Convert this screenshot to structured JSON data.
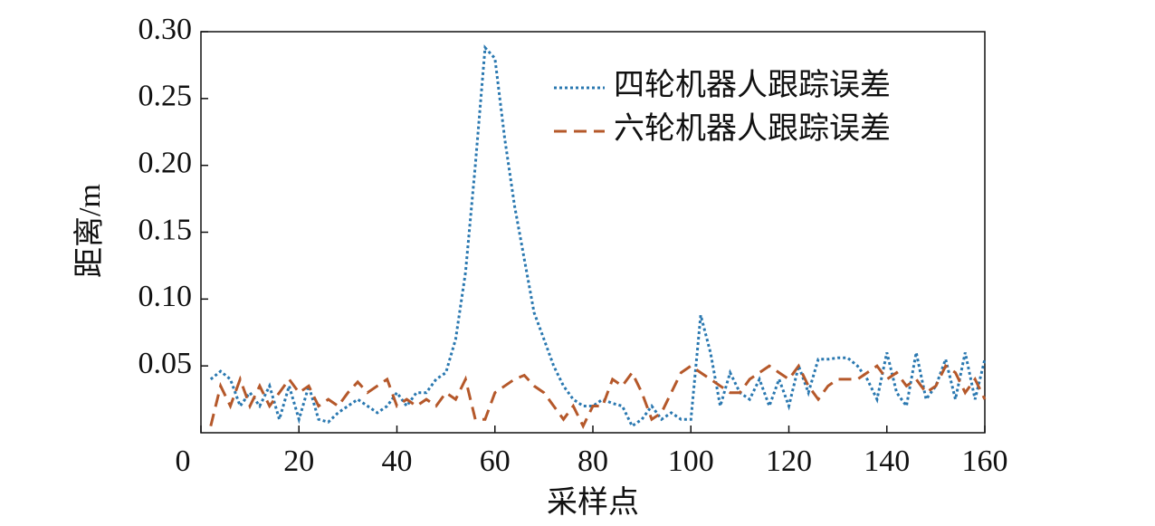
{
  "chart_data": {
    "type": "line",
    "x_label": "采样点",
    "y_label": "距离/m",
    "xlim": [
      0,
      160
    ],
    "ylim": [
      0,
      0.3
    ],
    "xticks": [
      0,
      20,
      40,
      60,
      80,
      100,
      120,
      140,
      160
    ],
    "yticks": [
      0.05,
      {
        "value": 0.1,
        "label": "0.10"
      },
      0.15,
      {
        "value": 0.2,
        "label": "0.20"
      },
      0.25,
      {
        "value": 0.3,
        "label": "0.30"
      }
    ],
    "legend": "upper right",
    "x": [
      2,
      4,
      6,
      8,
      10,
      12,
      14,
      16,
      18,
      20,
      22,
      24,
      26,
      28,
      30,
      32,
      34,
      36,
      38,
      40,
      42,
      44,
      46,
      48,
      50,
      52,
      54,
      56,
      58,
      60,
      62,
      64,
      66,
      68,
      70,
      72,
      74,
      76,
      78,
      80,
      82,
      84,
      86,
      88,
      90,
      92,
      94,
      96,
      98,
      100,
      102,
      104,
      106,
      108,
      110,
      112,
      114,
      116,
      118,
      120,
      122,
      124,
      126,
      128,
      130,
      132,
      134,
      136,
      138,
      140,
      142,
      144,
      146,
      148,
      150,
      152,
      154,
      156,
      158,
      160
    ],
    "series": [
      {
        "name": "四轮机器人跟踪误差",
        "color": "#2a78b0",
        "style": "dotted",
        "values": [
          0.04,
          0.046,
          0.04,
          0.02,
          0.03,
          0.02,
          0.035,
          0.01,
          0.035,
          0.01,
          0.035,
          0.01,
          0.008,
          0.015,
          0.02,
          0.025,
          0.02,
          0.015,
          0.02,
          0.03,
          0.02,
          0.03,
          0.03,
          0.04,
          0.045,
          0.07,
          0.12,
          0.2,
          0.288,
          0.28,
          0.22,
          0.17,
          0.13,
          0.09,
          0.07,
          0.05,
          0.035,
          0.025,
          0.02,
          0.02,
          0.025,
          0.022,
          0.02,
          0.005,
          0.01,
          0.02,
          0.01,
          0.015,
          0.01,
          0.01,
          0.088,
          0.06,
          0.02,
          0.045,
          0.03,
          0.025,
          0.04,
          0.02,
          0.04,
          0.02,
          0.05,
          0.03,
          0.055,
          0.055,
          0.056,
          0.056,
          0.05,
          0.04,
          0.025,
          0.06,
          0.03,
          0.02,
          0.06,
          0.025,
          0.035,
          0.055,
          0.025,
          0.06,
          0.025,
          0.055
        ]
      },
      {
        "name": "六轮机器人跟踪误差",
        "color": "#b5582a",
        "style": "dashed",
        "values": [
          0.005,
          0.035,
          0.02,
          0.04,
          0.02,
          0.035,
          0.02,
          0.03,
          0.04,
          0.03,
          0.035,
          0.02,
          0.025,
          0.02,
          0.03,
          0.038,
          0.03,
          0.035,
          0.04,
          0.02,
          0.025,
          0.02,
          0.025,
          0.02,
          0.03,
          0.025,
          0.04,
          0.01,
          0.01,
          0.03,
          0.035,
          0.04,
          0.043,
          0.035,
          0.03,
          0.02,
          0.01,
          0.02,
          0.005,
          0.02,
          0.02,
          0.04,
          0.035,
          0.045,
          0.03,
          0.01,
          0.015,
          0.03,
          0.045,
          0.05,
          0.045,
          0.04,
          0.035,
          0.03,
          0.03,
          0.04,
          0.045,
          0.05,
          0.045,
          0.04,
          0.05,
          0.035,
          0.025,
          0.035,
          0.04,
          0.04,
          0.04,
          0.045,
          0.05,
          0.04,
          0.045,
          0.035,
          0.04,
          0.03,
          0.035,
          0.05,
          0.045,
          0.03,
          0.04,
          0.025
        ]
      }
    ]
  }
}
